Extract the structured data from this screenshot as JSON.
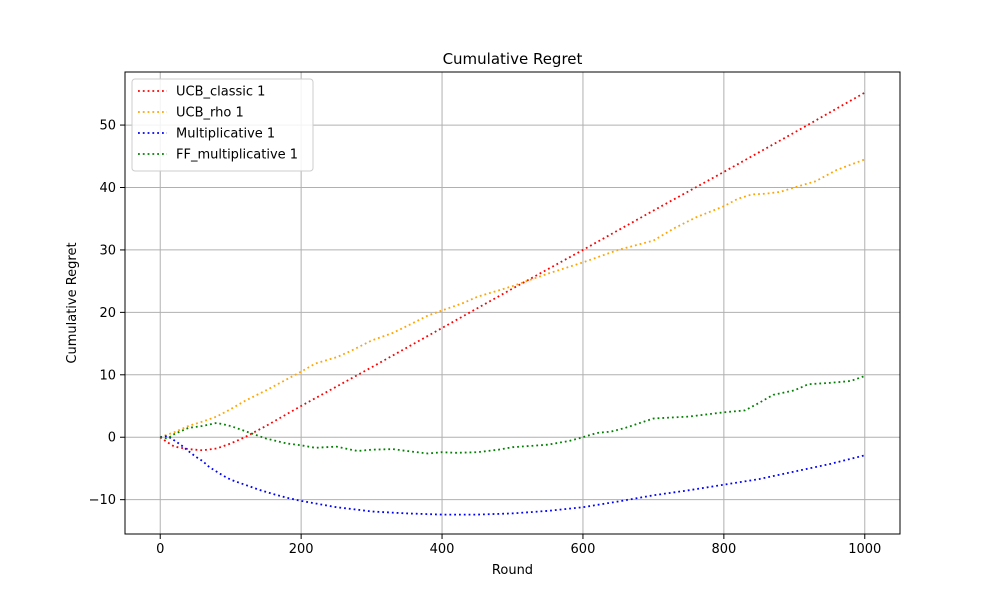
{
  "chart_data": {
    "type": "line",
    "title": "Cumulative Regret",
    "xlabel": "Round",
    "ylabel": "Cumulative Regret",
    "xlim": [
      -50,
      1050
    ],
    "ylim": [
      -15.5,
      58.5
    ],
    "xticks": [
      0,
      200,
      400,
      600,
      800,
      1000
    ],
    "yticks": [
      -10,
      0,
      10,
      20,
      30,
      40,
      50
    ],
    "grid": true,
    "legend_position": "top-left",
    "line_style": "dotted",
    "series": [
      {
        "name": "UCB_classic 1",
        "color": "#ff0000",
        "x": [
          0,
          10,
          20,
          40,
          60,
          80,
          100,
          120,
          150,
          200,
          300,
          400,
          500,
          600,
          700,
          800,
          900,
          1000
        ],
        "y": [
          0,
          -0.8,
          -1.5,
          -1.9,
          -2.1,
          -1.8,
          -1.0,
          0.0,
          1.8,
          5.0,
          11.2,
          17.5,
          23.8,
          30.0,
          36.3,
          42.5,
          48.8,
          55.2
        ]
      },
      {
        "name": "UCB_rho 1",
        "color": "#ffa500",
        "x": [
          0,
          20,
          40,
          60,
          80,
          100,
          120,
          150,
          180,
          200,
          220,
          250,
          270,
          300,
          330,
          350,
          380,
          400,
          430,
          450,
          480,
          500,
          550,
          600,
          620,
          650,
          700,
          730,
          760,
          800,
          820,
          840,
          860,
          880,
          900,
          930,
          960,
          1000
        ],
        "y": [
          0,
          0.8,
          1.8,
          2.5,
          3.3,
          4.5,
          5.8,
          7.5,
          9.3,
          10.5,
          11.8,
          12.8,
          13.8,
          15.5,
          16.7,
          17.8,
          19.5,
          20.3,
          21.5,
          22.5,
          23.5,
          24.2,
          26.2,
          28.0,
          28.8,
          30.0,
          31.5,
          33.5,
          35.2,
          37.0,
          38.2,
          38.9,
          39.0,
          39.3,
          40.0,
          41.0,
          42.8,
          44.5
        ]
      },
      {
        "name": "Multiplicative 1",
        "color": "#0000ff",
        "x": [
          0,
          10,
          20,
          30,
          40,
          50,
          60,
          70,
          80,
          90,
          100,
          120,
          140,
          160,
          180,
          200,
          220,
          250,
          280,
          300,
          350,
          400,
          450,
          500,
          550,
          600,
          650,
          700,
          750,
          800,
          850,
          900,
          950,
          1000
        ],
        "y": [
          0,
          0.2,
          -0.5,
          -1.3,
          -2.2,
          -3.1,
          -3.8,
          -4.8,
          -5.5,
          -6.2,
          -6.8,
          -7.6,
          -8.4,
          -9.1,
          -9.7,
          -10.2,
          -10.6,
          -11.2,
          -11.6,
          -11.9,
          -12.2,
          -12.4,
          -12.4,
          -12.2,
          -11.8,
          -11.2,
          -10.3,
          -9.3,
          -8.5,
          -7.6,
          -6.7,
          -5.5,
          -4.3,
          -2.9
        ]
      },
      {
        "name": "FF_multiplicative 1",
        "color": "#008000",
        "x": [
          0,
          10,
          20,
          40,
          60,
          80,
          100,
          120,
          150,
          180,
          200,
          220,
          250,
          280,
          300,
          330,
          350,
          380,
          400,
          420,
          450,
          480,
          500,
          550,
          580,
          600,
          620,
          640,
          660,
          700,
          750,
          800,
          830,
          850,
          870,
          900,
          920,
          950,
          980,
          1000
        ],
        "y": [
          0,
          -0.2,
          0.5,
          1.5,
          1.8,
          2.3,
          1.8,
          1.0,
          -0.2,
          -1.0,
          -1.3,
          -1.7,
          -1.5,
          -2.2,
          -2.0,
          -1.9,
          -2.2,
          -2.6,
          -2.4,
          -2.5,
          -2.4,
          -2.0,
          -1.6,
          -1.2,
          -0.6,
          0.0,
          0.7,
          0.9,
          1.5,
          3.0,
          3.3,
          4.0,
          4.3,
          5.5,
          6.8,
          7.5,
          8.5,
          8.7,
          9.0,
          9.8
        ]
      }
    ]
  }
}
